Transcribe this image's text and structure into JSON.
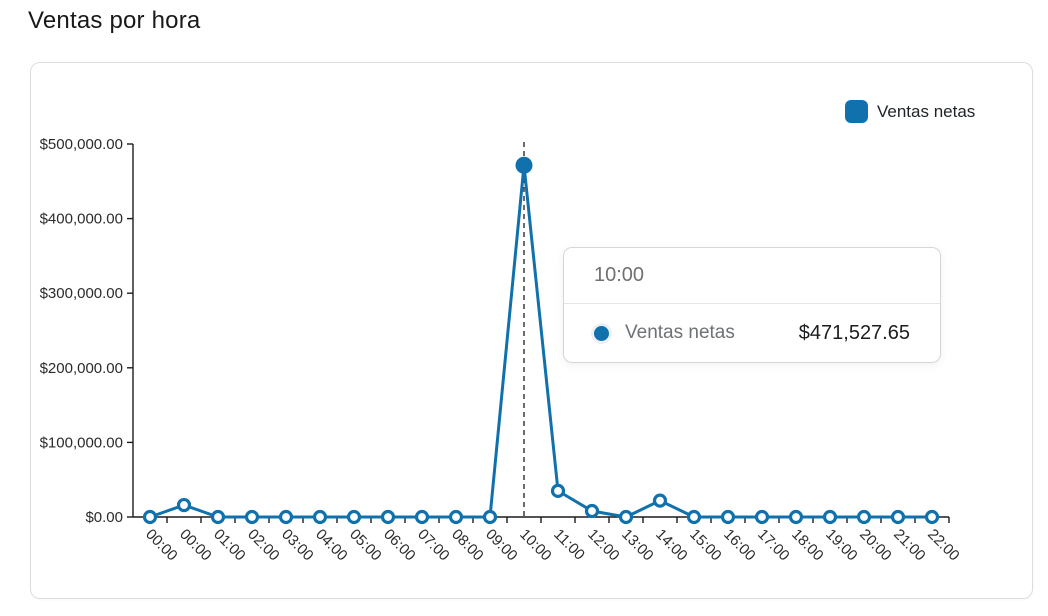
{
  "page": {
    "title": "Ventas por hora"
  },
  "legend": {
    "label": "Ventas netas"
  },
  "tooltip": {
    "header": "10:00",
    "series_label": "Ventas netas",
    "value": "$471,527.65"
  },
  "colors": {
    "series_blue": "#1071ad",
    "axis_line": "#1c1c1c",
    "dashed_crosshair": "#1c1c1c",
    "tick_label": "#2b2b2b"
  },
  "chart_data": {
    "type": "line",
    "title": "Ventas por hora",
    "categories": [
      "00:00",
      "00:00",
      "01:00",
      "02:00",
      "03:00",
      "04:00",
      "05:00",
      "06:00",
      "07:00",
      "08:00",
      "09:00",
      "10:00",
      "11:00",
      "12:00",
      "13:00",
      "14:00",
      "15:00",
      "16:00",
      "17:00",
      "18:00",
      "19:00",
      "20:00",
      "21:00",
      "22:00"
    ],
    "series": [
      {
        "name": "Ventas netas",
        "values": [
          0,
          16000,
          0,
          0,
          0,
          0,
          0,
          0,
          0,
          0,
          0,
          471527.65,
          35000,
          8000,
          0,
          22000,
          0,
          0,
          0,
          0,
          0,
          0,
          0,
          0
        ]
      }
    ],
    "active_index": 11,
    "active_category": "10:00",
    "active_value_label": "$471,527.65",
    "xlabel": "",
    "ylabel": "",
    "ylim": [
      0,
      500000
    ],
    "ytick_values": [
      0,
      100000,
      200000,
      300000,
      400000,
      500000
    ],
    "ytick_labels": [
      "$0.00",
      "$100,000.00",
      "$200,000.00",
      "$300,000.00",
      "$400,000.00",
      "$500,000.00"
    ],
    "grid": false,
    "legend_position": "top-right",
    "marker": "open-circle",
    "crosshair": "dashed-vertical"
  }
}
